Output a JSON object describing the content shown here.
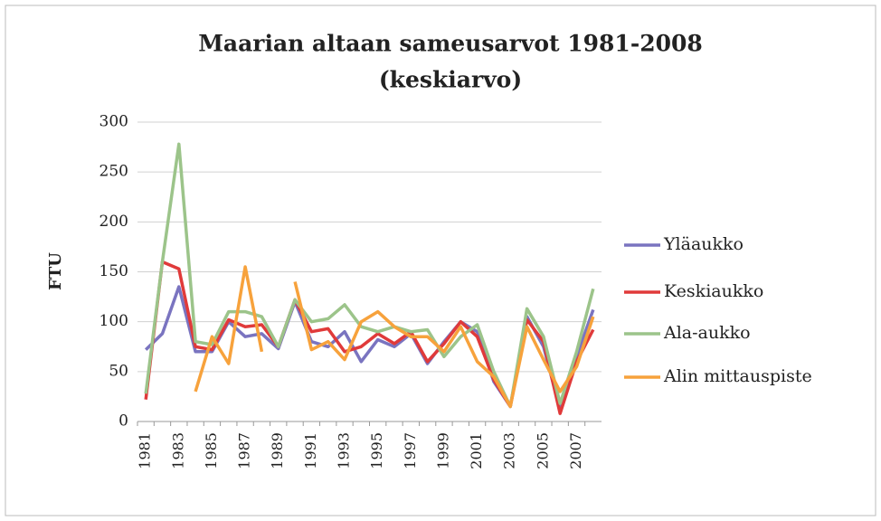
{
  "chart_data": {
    "type": "line",
    "title": [
      "Maarian altaan sameusarvot 1981-2008",
      "(keskiarvo)"
    ],
    "y_label": "FTU",
    "categories": [
      "1981",
      null,
      "1983",
      null,
      "1985",
      null,
      "1987",
      null,
      "1989",
      null,
      "1991",
      null,
      "1993",
      null,
      "1995",
      null,
      "1997",
      null,
      "1999",
      null,
      "2001",
      null,
      "2003",
      null,
      "2005",
      null,
      "2007",
      null
    ],
    "series": [
      {
        "name": "Yläaukko",
        "color": "#7a74c0",
        "values": [
          72,
          88,
          135,
          70,
          70,
          100,
          85,
          88,
          73,
          120,
          80,
          75,
          90,
          60,
          82,
          75,
          88,
          58,
          80,
          100,
          90,
          40,
          15,
          105,
          75,
          12,
          65,
          112
        ]
      },
      {
        "name": "Keskiaukko",
        "color": "#e03a3a",
        "values": [
          22,
          160,
          153,
          75,
          72,
          102,
          95,
          97,
          75,
          122,
          90,
          93,
          70,
          75,
          88,
          78,
          90,
          60,
          78,
          100,
          85,
          42,
          15,
          102,
          80,
          8,
          60,
          92
        ]
      },
      {
        "name": "Ala-aukko",
        "color": "#9cc48a",
        "values": [
          28,
          160,
          278,
          80,
          77,
          110,
          110,
          105,
          75,
          122,
          100,
          103,
          117,
          95,
          90,
          95,
          90,
          92,
          65,
          85,
          97,
          50,
          15,
          113,
          85,
          18,
          70,
          133
        ]
      },
      {
        "name": "Alin mittauspiste",
        "color": "#f7a23c",
        "values": [
          null,
          null,
          null,
          30,
          85,
          58,
          155,
          70,
          null,
          140,
          72,
          80,
          62,
          100,
          110,
          95,
          85,
          85,
          70,
          95,
          60,
          45,
          15,
          95,
          62,
          30,
          55,
          105
        ]
      }
    ],
    "ylim": [
      0,
      300
    ],
    "yticks": [
      0,
      50,
      100,
      150,
      200,
      250,
      300
    ],
    "grid": true,
    "legend": "right"
  }
}
